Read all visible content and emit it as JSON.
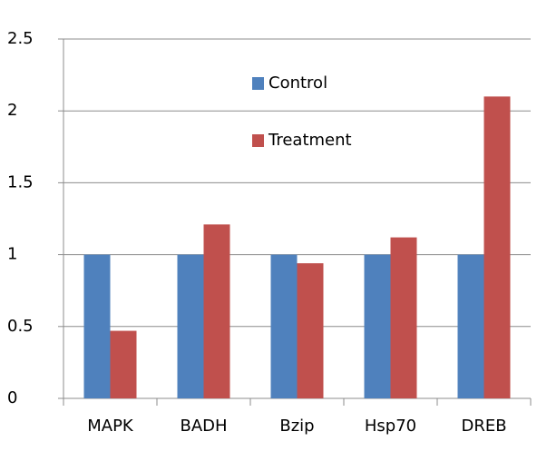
{
  "chart_data": {
    "type": "bar",
    "categories": [
      "MAPK",
      "BADH",
      "Bzip",
      "Hsp70",
      "DREB"
    ],
    "series": [
      {
        "name": "Control",
        "color": "#4f81bd",
        "values": [
          1,
          1,
          1,
          1,
          1
        ]
      },
      {
        "name": "Treatment",
        "color": "#c0504d",
        "values": [
          0.47,
          1.21,
          0.94,
          1.12,
          2.1
        ]
      }
    ],
    "ylim": [
      0,
      2.5
    ],
    "yticks": [
      0,
      0.5,
      1,
      1.5,
      2,
      2.5
    ],
    "grid": true
  }
}
